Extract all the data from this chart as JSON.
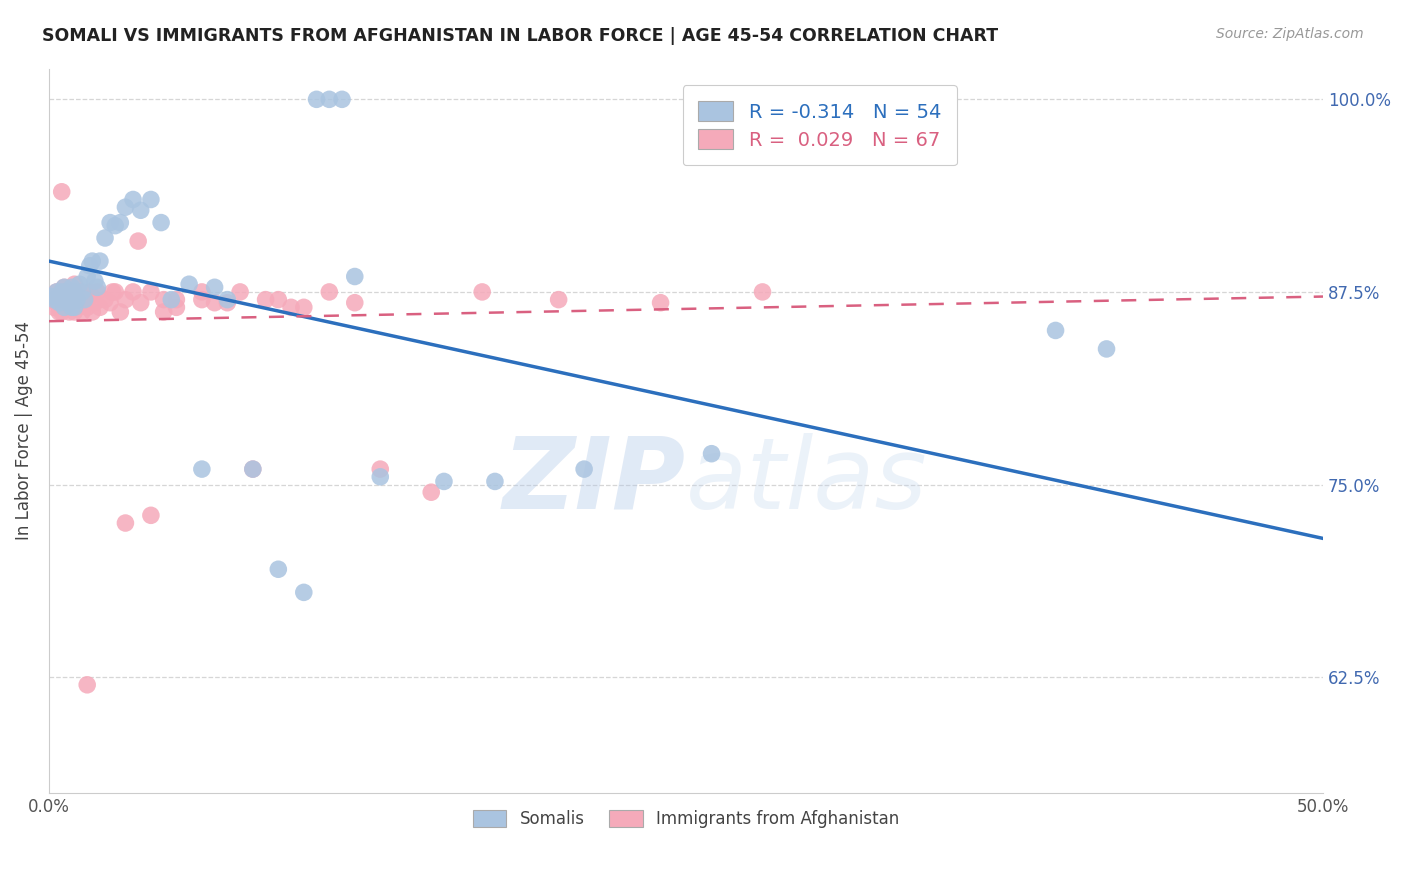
{
  "title": "SOMALI VS IMMIGRANTS FROM AFGHANISTAN IN LABOR FORCE | AGE 45-54 CORRELATION CHART",
  "source": "Source: ZipAtlas.com",
  "ylabel": "In Labor Force | Age 45-54",
  "xlim": [
    0.0,
    0.5
  ],
  "ylim": [
    0.55,
    1.02
  ],
  "yticks": [
    0.625,
    0.75,
    0.875,
    1.0
  ],
  "ytick_labels": [
    "62.5%",
    "75.0%",
    "87.5%",
    "100.0%"
  ],
  "xticks": [
    0.0,
    0.1,
    0.2,
    0.3,
    0.4,
    0.5
  ],
  "xtick_labels": [
    "0.0%",
    "",
    "",
    "",
    "",
    "50.0%"
  ],
  "legend_R_somali": "-0.314",
  "legend_N_somali": "54",
  "legend_R_afghan": "0.029",
  "legend_N_afghan": "67",
  "somali_color": "#aac4e0",
  "afghan_color": "#f5aaba",
  "somali_line_color": "#2c6fbd",
  "afghan_line_color": "#d96080",
  "background_color": "#ffffff",
  "grid_color": "#cccccc",
  "somali_line_x0": 0.0,
  "somali_line_x1": 0.5,
  "somali_line_y0": 0.895,
  "somali_line_y1": 0.715,
  "afghan_line_x0": 0.0,
  "afghan_line_x1": 0.5,
  "afghan_line_y0": 0.856,
  "afghan_line_y1": 0.872,
  "somali_x": [
    0.001,
    0.002,
    0.003,
    0.004,
    0.005,
    0.005,
    0.006,
    0.006,
    0.007,
    0.007,
    0.008,
    0.008,
    0.009,
    0.009,
    0.01,
    0.01,
    0.011,
    0.012,
    0.013,
    0.014,
    0.015,
    0.016,
    0.017,
    0.018,
    0.019,
    0.02,
    0.022,
    0.024,
    0.026,
    0.028,
    0.03,
    0.033,
    0.036,
    0.04,
    0.044,
    0.048,
    0.055,
    0.06,
    0.065,
    0.07,
    0.08,
    0.09,
    0.1,
    0.105,
    0.11,
    0.115,
    0.12,
    0.13,
    0.155,
    0.175,
    0.21,
    0.26,
    0.395,
    0.415
  ],
  "somali_y": [
    0.872,
    0.87,
    0.875,
    0.868,
    0.875,
    0.87,
    0.878,
    0.865,
    0.87,
    0.875,
    0.868,
    0.872,
    0.865,
    0.878,
    0.875,
    0.865,
    0.87,
    0.88,
    0.875,
    0.87,
    0.885,
    0.892,
    0.895,
    0.882,
    0.878,
    0.895,
    0.91,
    0.92,
    0.918,
    0.92,
    0.93,
    0.935,
    0.928,
    0.935,
    0.92,
    0.87,
    0.88,
    0.76,
    0.878,
    0.87,
    0.76,
    0.695,
    0.68,
    1.0,
    1.0,
    1.0,
    0.885,
    0.755,
    0.752,
    0.752,
    0.76,
    0.77,
    0.85,
    0.838
  ],
  "afghan_x": [
    0.001,
    0.002,
    0.002,
    0.003,
    0.003,
    0.004,
    0.004,
    0.005,
    0.005,
    0.006,
    0.006,
    0.007,
    0.007,
    0.008,
    0.008,
    0.009,
    0.009,
    0.01,
    0.01,
    0.011,
    0.012,
    0.013,
    0.014,
    0.015,
    0.016,
    0.017,
    0.018,
    0.019,
    0.02,
    0.022,
    0.024,
    0.026,
    0.028,
    0.03,
    0.033,
    0.036,
    0.04,
    0.045,
    0.05,
    0.06,
    0.07,
    0.08,
    0.09,
    0.1,
    0.11,
    0.12,
    0.13,
    0.15,
    0.17,
    0.2,
    0.24,
    0.28,
    0.005,
    0.01,
    0.015,
    0.025,
    0.035,
    0.045,
    0.06,
    0.03,
    0.04,
    0.05,
    0.065,
    0.075,
    0.085,
    0.095,
    0.015
  ],
  "afghan_y": [
    0.87,
    0.872,
    0.865,
    0.868,
    0.875,
    0.862,
    0.87,
    0.875,
    0.862,
    0.868,
    0.878,
    0.865,
    0.875,
    0.87,
    0.862,
    0.875,
    0.865,
    0.87,
    0.862,
    0.868,
    0.875,
    0.862,
    0.87,
    0.865,
    0.875,
    0.862,
    0.868,
    0.875,
    0.865,
    0.87,
    0.868,
    0.875,
    0.862,
    0.87,
    0.875,
    0.868,
    0.875,
    0.87,
    0.865,
    0.875,
    0.868,
    0.76,
    0.87,
    0.865,
    0.875,
    0.868,
    0.76,
    0.745,
    0.875,
    0.87,
    0.868,
    0.875,
    0.94,
    0.88,
    0.87,
    0.875,
    0.908,
    0.862,
    0.87,
    0.725,
    0.73,
    0.87,
    0.868,
    0.875,
    0.87,
    0.865,
    0.62
  ]
}
